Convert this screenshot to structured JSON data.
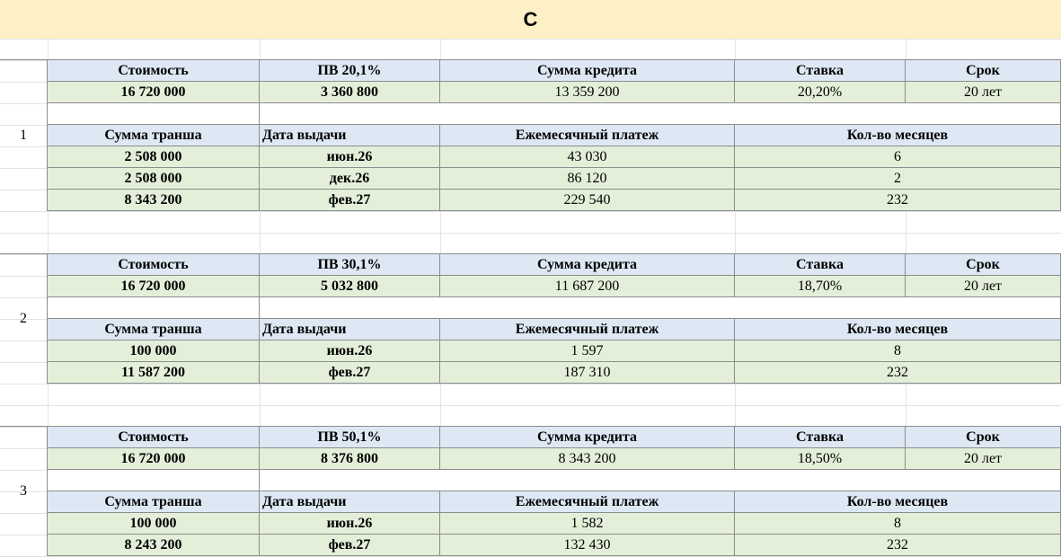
{
  "title": "С",
  "blocks": [
    {
      "number": "1",
      "header": [
        "Стоимость",
        "ПВ 20,1%",
        "Сумма  кредита",
        "Ставка",
        "Срок"
      ],
      "values": [
        "16 720 000",
        "3 360 800",
        "13 359 200",
        "20,20%",
        "20 лет"
      ],
      "tranche_header": [
        "Сумма транша",
        "Дата выдачи",
        "Ежемесячный платеж",
        "Кол-во месяцев"
      ],
      "tranches": [
        [
          "2 508 000",
          "июн.26",
          "43 030",
          "6"
        ],
        [
          "2 508 000",
          "дек.26",
          "86 120",
          "2"
        ],
        [
          "8 343 200",
          "фев.27",
          "229 540",
          "232"
        ]
      ]
    },
    {
      "number": "2",
      "header": [
        "Стоимость",
        "ПВ 30,1%",
        "Сумма  кредита",
        "Ставка",
        "Срок"
      ],
      "values": [
        "16 720 000",
        "5 032 800",
        "11 687 200",
        "18,70%",
        "20 лет"
      ],
      "tranche_header": [
        "Сумма транша",
        "Дата выдачи",
        "Ежемесячный платеж",
        "Кол-во месяцев"
      ],
      "tranches": [
        [
          "100 000",
          "июн.26",
          "1 597",
          "8"
        ],
        [
          "11 587 200",
          "фев.27",
          "187 310",
          "232"
        ]
      ]
    },
    {
      "number": "3",
      "header": [
        "Стоимость",
        "ПВ 50,1%",
        "Сумма  кредита",
        "Ставка",
        "Срок"
      ],
      "values": [
        "16 720 000",
        "8 376 800",
        "8 343 200",
        "18,50%",
        "20 лет"
      ],
      "tranche_header": [
        "Сумма транша",
        "Дата выдачи",
        "Ежемесячный платеж",
        "Кол-во месяцев"
      ],
      "tranches": [
        [
          "100 000",
          "июн.26",
          "1 582",
          "8"
        ],
        [
          "8 243 200",
          "фев.27",
          "132 430",
          "232"
        ]
      ]
    }
  ]
}
